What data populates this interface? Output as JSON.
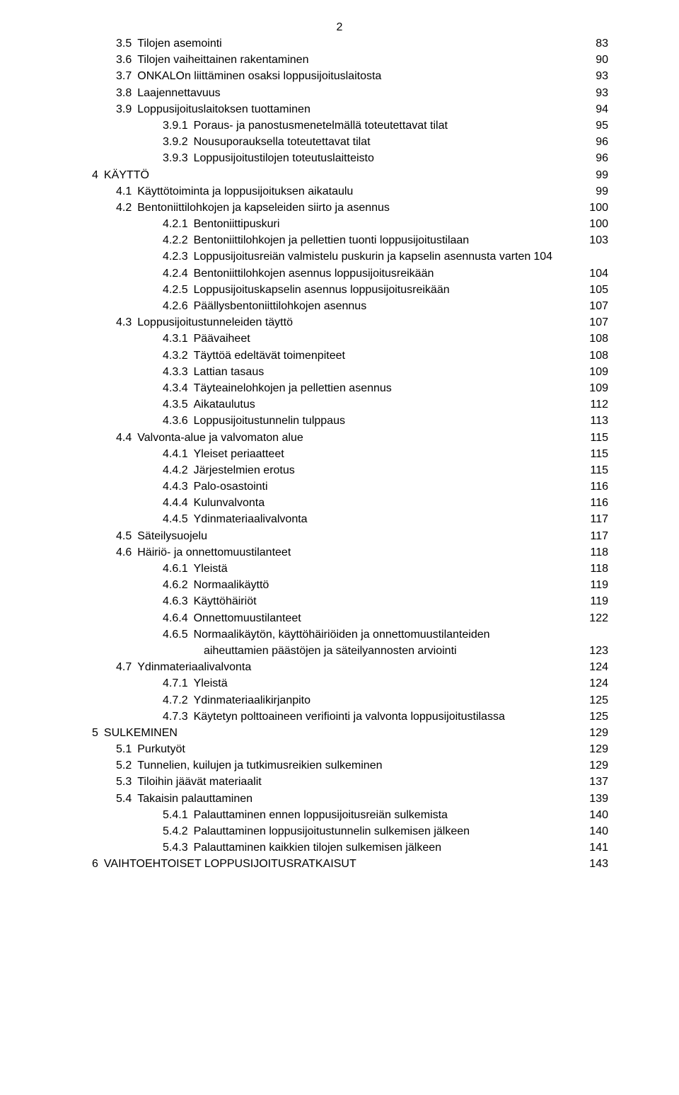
{
  "page_number": "2",
  "font": {
    "family": "Arial",
    "size_pt": 12,
    "color": "#000000"
  },
  "background_color": "#ffffff",
  "toc": [
    {
      "indent": 1,
      "num": "3.5",
      "title": "Tilojen asemointi",
      "page": "83"
    },
    {
      "indent": 1,
      "num": "3.6",
      "title": "Tilojen vaiheittainen rakentaminen",
      "page": "90"
    },
    {
      "indent": 1,
      "num": "3.7",
      "title": "ONKALOn liittäminen osaksi loppusijoituslaitosta",
      "page": "93"
    },
    {
      "indent": 1,
      "num": "3.8",
      "title": "Laajennettavuus",
      "page": "93"
    },
    {
      "indent": 1,
      "num": "3.9",
      "title": "Loppusijoituslaitoksen tuottaminen",
      "page": "94"
    },
    {
      "indent": 2,
      "num": "3.9.1",
      "title": "Poraus- ja panostusmenetelmällä toteutettavat tilat",
      "page": "95"
    },
    {
      "indent": 2,
      "num": "3.9.2",
      "title": "Nousuporauksella toteutettavat tilat",
      "page": "96"
    },
    {
      "indent": 2,
      "num": "3.9.3",
      "title": "Loppusijoitustilojen toteutuslaitteisto",
      "page": "96"
    },
    {
      "indent": 0,
      "num": "4",
      "title": "KÄYTTÖ",
      "page": "99"
    },
    {
      "indent": 1,
      "num": "4.1",
      "title": "Käyttötoiminta ja loppusijoituksen aikataulu",
      "page": "99"
    },
    {
      "indent": 1,
      "num": "4.2",
      "title": "Bentoniittilohkojen ja kapseleiden siirto ja asennus",
      "page": "100"
    },
    {
      "indent": 2,
      "num": "4.2.1",
      "title": "Bentoniittipuskuri",
      "page": "100"
    },
    {
      "indent": 2,
      "num": "4.2.2",
      "title": "Bentoniittilohkojen ja pellettien tuonti loppusijoitustilaan",
      "page": "103"
    },
    {
      "indent": 2,
      "num": "4.2.3",
      "title": "Loppusijoitusreiän valmistelu puskurin ja kapselin asennusta varten",
      "page": "104",
      "tight": true
    },
    {
      "indent": 2,
      "num": "4.2.4",
      "title": "Bentoniittilohkojen asennus loppusijoitusreikään",
      "page": "104"
    },
    {
      "indent": 2,
      "num": "4.2.5",
      "title": "Loppusijoituskapselin asennus loppusijoitusreikään",
      "page": "105"
    },
    {
      "indent": 2,
      "num": "4.2.6",
      "title": "Päällysbentoniittilohkojen asennus",
      "page": "107"
    },
    {
      "indent": 1,
      "num": "4.3",
      "title": "Loppusijoitustunneleiden täyttö",
      "page": "107"
    },
    {
      "indent": 2,
      "num": "4.3.1",
      "title": "Päävaiheet",
      "page": "108"
    },
    {
      "indent": 2,
      "num": "4.3.2",
      "title": "Täyttöä edeltävät toimenpiteet",
      "page": "108"
    },
    {
      "indent": 2,
      "num": "4.3.3",
      "title": "Lattian tasaus",
      "page": "109"
    },
    {
      "indent": 2,
      "num": "4.3.4",
      "title": "Täyteainelohkojen ja pellettien asennus",
      "page": "109"
    },
    {
      "indent": 2,
      "num": "4.3.5",
      "title": "Aikataulutus",
      "page": "112"
    },
    {
      "indent": 2,
      "num": "4.3.6",
      "title": "Loppusijoitustunnelin tulppaus",
      "page": "113"
    },
    {
      "indent": 1,
      "num": "4.4",
      "title": "Valvonta-alue ja valvomaton alue",
      "page": "115"
    },
    {
      "indent": 2,
      "num": "4.4.1",
      "title": "Yleiset periaatteet",
      "page": "115"
    },
    {
      "indent": 2,
      "num": "4.4.2",
      "title": "Järjestelmien erotus",
      "page": "115"
    },
    {
      "indent": 2,
      "num": "4.4.3",
      "title": "Palo-osastointi",
      "page": "116"
    },
    {
      "indent": 2,
      "num": "4.4.4",
      "title": "Kulunvalvonta",
      "page": "116"
    },
    {
      "indent": 2,
      "num": "4.4.5",
      "title": "Ydinmateriaalivalvonta",
      "page": "117"
    },
    {
      "indent": 1,
      "num": "4.5",
      "title": "Säteilysuojelu",
      "page": "117"
    },
    {
      "indent": 1,
      "num": "4.6",
      "title": "Häiriö- ja onnettomuustilanteet",
      "page": "118"
    },
    {
      "indent": 2,
      "num": "4.6.1",
      "title": "Yleistä",
      "page": "118"
    },
    {
      "indent": 2,
      "num": "4.6.2",
      "title": "Normaalikäyttö",
      "page": "119"
    },
    {
      "indent": 2,
      "num": "4.6.3",
      "title": "Käyttöhäiriöt",
      "page": "119"
    },
    {
      "indent": 2,
      "num": "4.6.4",
      "title": "Onnettomuustilanteet",
      "page": "122"
    },
    {
      "indent": 2,
      "num": "4.6.5",
      "title": "Normaalikäytön, käyttöhäiriöiden ja onnettomuustilanteiden",
      "page": "",
      "nopage": true
    },
    {
      "indent": 3,
      "num": "",
      "title": "aiheuttamien päästöjen ja säteilyannosten arviointi",
      "page": "123"
    },
    {
      "indent": 1,
      "num": "4.7",
      "title": "Ydinmateriaalivalvonta",
      "page": "124"
    },
    {
      "indent": 2,
      "num": "4.7.1",
      "title": "Yleistä",
      "page": "124"
    },
    {
      "indent": 2,
      "num": "4.7.2",
      "title": "Ydinmateriaalikirjanpito",
      "page": "125"
    },
    {
      "indent": 2,
      "num": "4.7.3",
      "title": "Käytetyn polttoaineen verifiointi ja valvonta loppusijoitustilassa",
      "page": "125"
    },
    {
      "indent": 0,
      "num": "5",
      "title": "SULKEMINEN",
      "page": "129"
    },
    {
      "indent": 1,
      "num": "5.1",
      "title": "Purkutyöt",
      "page": "129"
    },
    {
      "indent": 1,
      "num": "5.2",
      "title": "Tunnelien, kuilujen ja tutkimusreikien sulkeminen",
      "page": "129"
    },
    {
      "indent": 1,
      "num": "5.3",
      "title": "Tiloihin jäävät materiaalit",
      "page": "137"
    },
    {
      "indent": 1,
      "num": "5.4",
      "title": "Takaisin palauttaminen",
      "page": "139"
    },
    {
      "indent": 2,
      "num": "5.4.1",
      "title": "Palauttaminen ennen loppusijoitusreiän sulkemista",
      "page": "140"
    },
    {
      "indent": 2,
      "num": "5.4.2",
      "title": "Palauttaminen loppusijoitustunnelin sulkemisen jälkeen",
      "page": "140"
    },
    {
      "indent": 2,
      "num": "5.4.3",
      "title": "Palauttaminen kaikkien tilojen sulkemisen jälkeen",
      "page": "141"
    },
    {
      "indent": 0,
      "num": "6",
      "title": "VAIHTOEHTOISET LOPPUSIJOITUSRATKAISUT",
      "page": "143"
    }
  ]
}
